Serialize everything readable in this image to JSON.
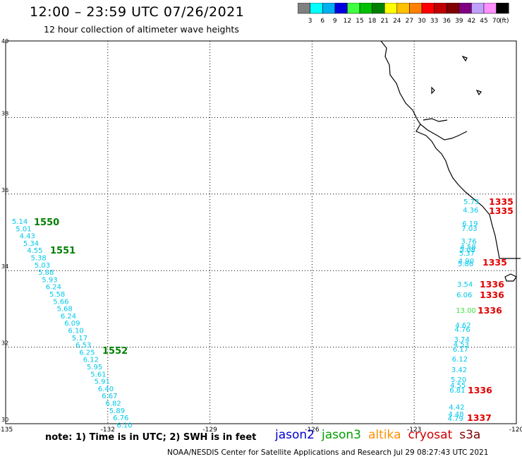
{
  "header": {
    "title": "12:00 – 23:59 UTC 07/26/2021",
    "subtitle": "12 hour collection of altimeter wave heights"
  },
  "color_scale": {
    "unit_label": "(ft)",
    "bins": [
      {
        "label": "3",
        "color": "#808080"
      },
      {
        "label": "6",
        "color": "#00ffff"
      },
      {
        "label": "9",
        "color": "#00b0f0"
      },
      {
        "label": "12",
        "color": "#0000e0"
      },
      {
        "label": "15",
        "color": "#40ff40"
      },
      {
        "label": "18",
        "color": "#00c000"
      },
      {
        "label": "21",
        "color": "#008000"
      },
      {
        "label": "24",
        "color": "#ffff00"
      },
      {
        "label": "27",
        "color": "#ffc000"
      },
      {
        "label": "30",
        "color": "#ff8000"
      },
      {
        "label": "33",
        "color": "#ff0000"
      },
      {
        "label": "36",
        "color": "#c00000"
      },
      {
        "label": "39",
        "color": "#800000"
      },
      {
        "label": "42",
        "color": "#800080"
      },
      {
        "label": "45",
        "color": "#c0a0ff"
      },
      {
        "label": "70",
        "color": "#ff90ff"
      },
      {
        "label": "",
        "color": "#000000"
      }
    ]
  },
  "map": {
    "lon_range": [
      -135,
      -120
    ],
    "lat_range": [
      30,
      40
    ],
    "lon_ticks": [
      "-135",
      "-132",
      "-129",
      "-126",
      "-123",
      "-120"
    ],
    "lat_ticks": [
      "30",
      "32",
      "34",
      "36",
      "38",
      "40"
    ]
  },
  "tracks": [
    {
      "pass": "1550",
      "pass2": "1551",
      "pass3": "1552",
      "pass_color": "#008000",
      "value_color": "#00c8e8",
      "values": [
        "5.14",
        "5.01",
        "4.43",
        "5.34",
        "4.55",
        "5.38",
        "5.03",
        "5.88",
        "5.93",
        "6.24",
        "5.58",
        "5.66",
        "5.68",
        "6.24",
        "6.09",
        "6.10",
        "5.17",
        "6.53",
        "6.25",
        "6.12",
        "5.95",
        "5.61",
        "5.91",
        "6.40",
        "6.67",
        "6.82",
        "5.89",
        "6.76",
        "6.10"
      ]
    },
    {
      "passes": [
        "1335",
        "1335",
        "1335",
        "1336",
        "1336",
        "1336",
        "1336",
        "1337"
      ],
      "pass_color": "#e00000",
      "values": [
        "5.73",
        "4.36",
        "6.19",
        "7.03",
        "3.76",
        "4.58",
        "5.08",
        "5.37",
        "4.90",
        "5.86",
        "3.54",
        "6.06",
        "13.00",
        "4.62",
        "4.76",
        "3.74",
        "4.53",
        "6.17",
        "6.12",
        "3.42",
        "5.20",
        "4.55",
        "6.81",
        "4.42",
        "4.48",
        "4.79"
      ],
      "colors": [
        "#00c8e8",
        "#00c8e8",
        "#00c8e8",
        "#00c8e8",
        "#00c8e8",
        "#00c8e8",
        "#00c8e8",
        "#00c8e8",
        "#00c8e8",
        "#00c8e8",
        "#00c8e8",
        "#00c8e8",
        "#40e040",
        "#00c8e8",
        "#00c8e8",
        "#00c8e8",
        "#00c8e8",
        "#00c8e8",
        "#00c8e8",
        "#00c8e8",
        "#00c8e8",
        "#00c8e8",
        "#00c8e8",
        "#00c8e8",
        "#00c8e8",
        "#00c8e8"
      ]
    }
  ],
  "footer": {
    "note": "note:  1) Time is in UTC;  2) SWH is in feet",
    "legend": [
      {
        "label": "jason2",
        "color": "#0000d0"
      },
      {
        "label": "jason3",
        "color": "#00a000"
      },
      {
        "label": "altika",
        "color": "#ff9000"
      },
      {
        "label": "cryosat",
        "color": "#d00000"
      },
      {
        "label": "s3a",
        "color": "#800000"
      }
    ],
    "credit": "NOAA/NESDIS Center for Satellite Applications and Research    Jul 29 08:27:43 UTC 2021"
  }
}
